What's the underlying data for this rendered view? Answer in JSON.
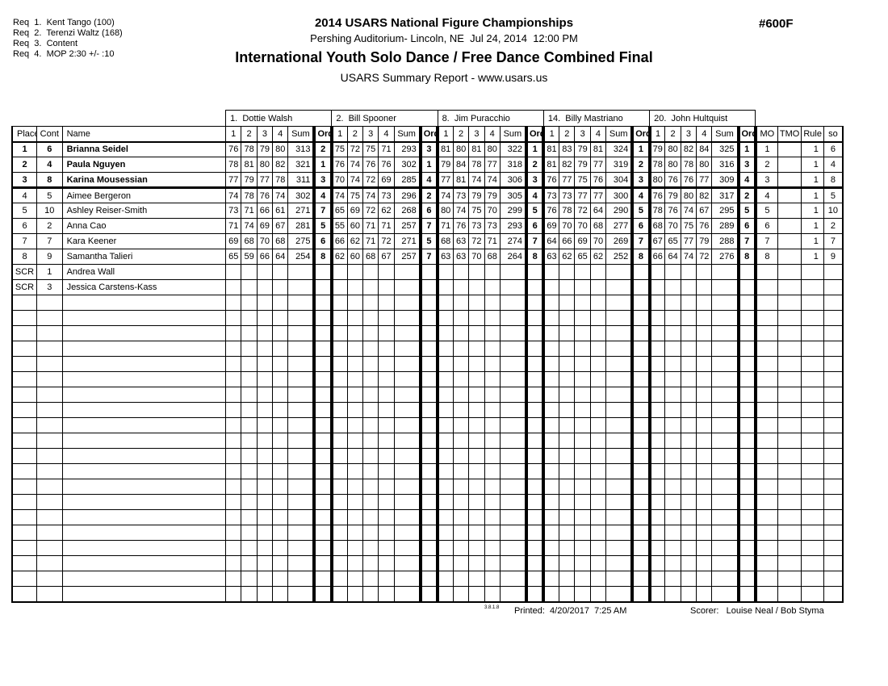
{
  "requirements": {
    "lines": [
      "Req  1.  Kent Tango (100)",
      "Req  2.  Terenzi Waltz (168)",
      "Req  3.  Content",
      "Req  4.  MOP 2:30 +/- :10"
    ]
  },
  "header": {
    "title": "2014 USARS National Figure Championships",
    "venue_line": "Pershing Auditorium- Lincoln, NE  Jul 24, 2014  12:00 PM",
    "event_title": "International Youth Solo Dance / Free Dance Combined Final",
    "report_line": "USARS Summary Report - www.usars.us",
    "event_number": "#600F"
  },
  "table": {
    "left_headers": [
      "Place",
      "Cont",
      "Name"
    ],
    "judge_subheaders": [
      "1",
      "2",
      "3",
      "4",
      "Sum",
      "Ord"
    ],
    "right_headers": [
      "MO",
      "TMO",
      "Rule",
      "so"
    ],
    "judges": [
      "1.  Dottie Walsh",
      "2.  Bill Spooner",
      "8.  Jim Puracchio",
      "14.  Billy Mastriano",
      "20.  John Hultquist"
    ],
    "rows": [
      {
        "place": "1",
        "cont": "6",
        "name": "Brianna Seidel",
        "bold": true,
        "judges": [
          [
            "76",
            "78",
            "79",
            "80",
            "313",
            "2"
          ],
          [
            "75",
            "72",
            "75",
            "71",
            "293",
            "3"
          ],
          [
            "81",
            "80",
            "81",
            "80",
            "322",
            "1"
          ],
          [
            "81",
            "83",
            "79",
            "81",
            "324",
            "1"
          ],
          [
            "79",
            "80",
            "82",
            "84",
            "325",
            "1"
          ]
        ],
        "mo": "1",
        "tmo": "",
        "rule": "1",
        "so": "6"
      },
      {
        "place": "2",
        "cont": "4",
        "name": "Paula Nguyen",
        "bold": true,
        "judges": [
          [
            "78",
            "81",
            "80",
            "82",
            "321",
            "1"
          ],
          [
            "76",
            "74",
            "76",
            "76",
            "302",
            "1"
          ],
          [
            "79",
            "84",
            "78",
            "77",
            "318",
            "2"
          ],
          [
            "81",
            "82",
            "79",
            "77",
            "319",
            "2"
          ],
          [
            "78",
            "80",
            "78",
            "80",
            "316",
            "3"
          ]
        ],
        "mo": "2",
        "tmo": "",
        "rule": "1",
        "so": "4"
      },
      {
        "place": "3",
        "cont": "8",
        "name": "Karina Mousessian",
        "bold": true,
        "judges": [
          [
            "77",
            "79",
            "77",
            "78",
            "311",
            "3"
          ],
          [
            "70",
            "74",
            "72",
            "69",
            "285",
            "4"
          ],
          [
            "77",
            "81",
            "74",
            "74",
            "306",
            "3"
          ],
          [
            "76",
            "77",
            "75",
            "76",
            "304",
            "3"
          ],
          [
            "80",
            "76",
            "76",
            "77",
            "309",
            "4"
          ]
        ],
        "mo": "3",
        "tmo": "",
        "rule": "1",
        "so": "8"
      },
      {
        "place": "4",
        "cont": "5",
        "name": "Aimee Bergeron",
        "bold": false,
        "judges": [
          [
            "74",
            "78",
            "76",
            "74",
            "302",
            "4"
          ],
          [
            "74",
            "75",
            "74",
            "73",
            "296",
            "2"
          ],
          [
            "74",
            "73",
            "79",
            "79",
            "305",
            "4"
          ],
          [
            "73",
            "73",
            "77",
            "77",
            "300",
            "4"
          ],
          [
            "76",
            "79",
            "80",
            "82",
            "317",
            "2"
          ]
        ],
        "mo": "4",
        "tmo": "",
        "rule": "1",
        "so": "5"
      },
      {
        "place": "5",
        "cont": "10",
        "name": "Ashley Reiser-Smith",
        "bold": false,
        "judges": [
          [
            "73",
            "71",
            "66",
            "61",
            "271",
            "7"
          ],
          [
            "65",
            "69",
            "72",
            "62",
            "268",
            "6"
          ],
          [
            "80",
            "74",
            "75",
            "70",
            "299",
            "5"
          ],
          [
            "76",
            "78",
            "72",
            "64",
            "290",
            "5"
          ],
          [
            "78",
            "76",
            "74",
            "67",
            "295",
            "5"
          ]
        ],
        "mo": "5",
        "tmo": "",
        "rule": "1",
        "so": "10"
      },
      {
        "place": "6",
        "cont": "2",
        "name": "Anna Cao",
        "bold": false,
        "judges": [
          [
            "71",
            "74",
            "69",
            "67",
            "281",
            "5"
          ],
          [
            "55",
            "60",
            "71",
            "71",
            "257",
            "7"
          ],
          [
            "71",
            "76",
            "73",
            "73",
            "293",
            "6"
          ],
          [
            "69",
            "70",
            "70",
            "68",
            "277",
            "6"
          ],
          [
            "68",
            "70",
            "75",
            "76",
            "289",
            "6"
          ]
        ],
        "mo": "6",
        "tmo": "",
        "rule": "1",
        "so": "2"
      },
      {
        "place": "7",
        "cont": "7",
        "name": "Kara Keener",
        "bold": false,
        "judges": [
          [
            "69",
            "68",
            "70",
            "68",
            "275",
            "6"
          ],
          [
            "66",
            "62",
            "71",
            "72",
            "271",
            "5"
          ],
          [
            "68",
            "63",
            "72",
            "71",
            "274",
            "7"
          ],
          [
            "64",
            "66",
            "69",
            "70",
            "269",
            "7"
          ],
          [
            "67",
            "65",
            "77",
            "79",
            "288",
            "7"
          ]
        ],
        "mo": "7",
        "tmo": "",
        "rule": "1",
        "so": "7"
      },
      {
        "place": "8",
        "cont": "9",
        "name": "Samantha Talieri",
        "bold": false,
        "judges": [
          [
            "65",
            "59",
            "66",
            "64",
            "254",
            "8"
          ],
          [
            "62",
            "60",
            "68",
            "67",
            "257",
            "7"
          ],
          [
            "63",
            "63",
            "70",
            "68",
            "264",
            "8"
          ],
          [
            "63",
            "62",
            "65",
            "62",
            "252",
            "8"
          ],
          [
            "66",
            "64",
            "74",
            "72",
            "276",
            "8"
          ]
        ],
        "mo": "8",
        "tmo": "",
        "rule": "1",
        "so": "9"
      },
      {
        "place": "SCR",
        "cont": "1",
        "name": "Andrea Wall",
        "bold": false,
        "judges": [
          [
            "",
            "",
            "",
            "",
            "",
            ""
          ],
          [
            "",
            "",
            "",
            "",
            "",
            ""
          ],
          [
            "",
            "",
            "",
            "",
            "",
            ""
          ],
          [
            "",
            "",
            "",
            "",
            "",
            ""
          ],
          [
            "",
            "",
            "",
            "",
            "",
            ""
          ]
        ],
        "mo": "",
        "tmo": "",
        "rule": "",
        "so": ""
      },
      {
        "place": "SCR",
        "cont": "3",
        "name": "Jessica Carstens-Kass",
        "bold": false,
        "judges": [
          [
            "",
            "",
            "",
            "",
            "",
            ""
          ],
          [
            "",
            "",
            "",
            "",
            "",
            ""
          ],
          [
            "",
            "",
            "",
            "",
            "",
            ""
          ],
          [
            "",
            "",
            "",
            "",
            "",
            ""
          ],
          [
            "",
            "",
            "",
            "",
            "",
            ""
          ]
        ],
        "mo": "",
        "tmo": "",
        "rule": "",
        "so": ""
      }
    ],
    "empty_row_count": 20,
    "bold_row_separator_after_row": 3
  },
  "footer": {
    "version": "3.8.1.8",
    "printed": "Printed:  4/20/2017  7:25 AM",
    "scorer": "Scorer:   Louise Neal / Bob Styma"
  }
}
